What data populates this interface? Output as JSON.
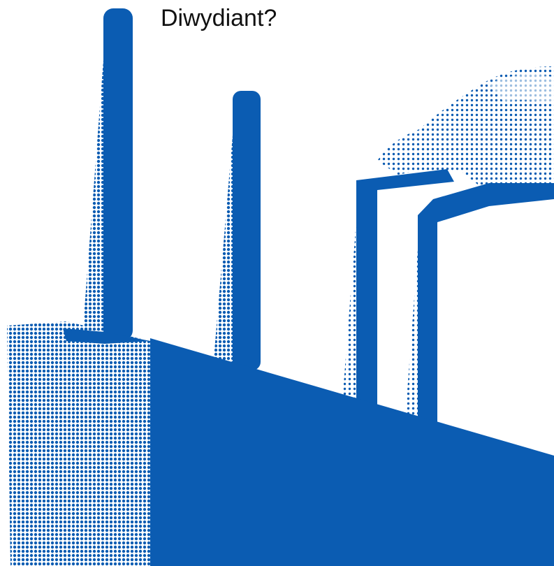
{
  "title": "Diwydiant?"
}
